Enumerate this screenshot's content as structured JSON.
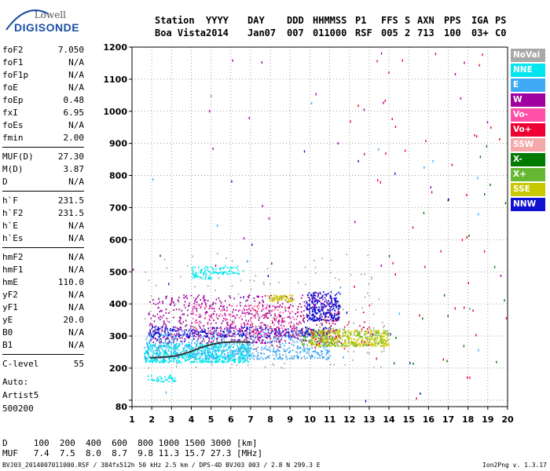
{
  "logo": {
    "line1": "Lowell",
    "line2": "DIGISONDE"
  },
  "header": {
    "labels": [
      "Station",
      "YYYY",
      "DAY",
      "DDD",
      "HHMMSS",
      "P1",
      "FFS",
      "S",
      "AXN",
      "PPS",
      "IGA",
      "PS"
    ],
    "values": [
      "Boa Vista",
      "2014",
      "Jan07",
      "007",
      "011000",
      "RSF",
      "005",
      "2",
      "713",
      "100",
      "03+",
      "C0"
    ]
  },
  "params_groups": [
    [
      {
        "name": "foF2",
        "value": "7.050"
      },
      {
        "name": "foF1",
        "value": "N/A"
      },
      {
        "name": "foF1p",
        "value": "N/A"
      },
      {
        "name": "foE",
        "value": "N/A"
      },
      {
        "name": "foEp",
        "value": "0.48"
      },
      {
        "name": "fxI",
        "value": "6.95"
      },
      {
        "name": "foEs",
        "value": "N/A"
      },
      {
        "name": "fmin",
        "value": "2.00"
      }
    ],
    [
      {
        "name": "MUF(D)",
        "value": "27.30"
      },
      {
        "name": "M(D)",
        "value": "3.87"
      },
      {
        "name": "D",
        "value": "N/A"
      }
    ],
    [
      {
        "name": "h`F",
        "value": "231.5"
      },
      {
        "name": "h`F2",
        "value": "231.5"
      },
      {
        "name": "h`E",
        "value": "N/A"
      },
      {
        "name": "h`Es",
        "value": "N/A"
      }
    ],
    [
      {
        "name": "hmF2",
        "value": "N/A"
      },
      {
        "name": "hmF1",
        "value": "N/A"
      },
      {
        "name": "hmE",
        "value": "110.0"
      },
      {
        "name": "yF2",
        "value": "N/A"
      },
      {
        "name": "yF1",
        "value": "N/A"
      },
      {
        "name": "yE",
        "value": "20.0"
      },
      {
        "name": "B0",
        "value": "N/A"
      },
      {
        "name": "B1",
        "value": "N/A"
      }
    ],
    [
      {
        "name": "C-level",
        "value": "55"
      }
    ]
  ],
  "auto": {
    "line1": "Auto:",
    "line2": "Artist5",
    "line3": "500200"
  },
  "footer": {
    "d_line": "D     100  200  400  600  800 1000 1500 3000 [km]",
    "muf_line": "MUF   7.4  7.5  8.0  8.7  9.8 11.3 15.7 27.3 [MHz]",
    "info": "BVJ03_2014007011000.RSF / 384fx512h 50 kHz 2.5 km / DPS-4D BVJ03 003 / 2.8 N 299.3 E",
    "version": "Ion2Png v. 1.3.17"
  },
  "legend": [
    {
      "label": "NoVal",
      "color": "#a9a9a9"
    },
    {
      "label": "NNE",
      "color": "#00e5ee"
    },
    {
      "label": "E",
      "color": "#3fa9f5"
    },
    {
      "label": "W",
      "color": "#a000a0"
    },
    {
      "label": "Vo-",
      "color": "#ff4fa7"
    },
    {
      "label": "Vo+",
      "color": "#ee0033"
    },
    {
      "label": "SSW",
      "color": "#f4a8a8"
    },
    {
      "label": "X-",
      "color": "#007a00"
    },
    {
      "label": "X+",
      "color": "#66b832"
    },
    {
      "label": "SSE",
      "color": "#c8c800"
    },
    {
      "label": "NNW",
      "color": "#1010d0"
    }
  ],
  "chart_data": {
    "type": "scatter",
    "xlim": [
      1,
      20
    ],
    "ylim": [
      80,
      1200
    ],
    "x_ticks": [
      1,
      2,
      3,
      4,
      5,
      6,
      7,
      8,
      9,
      10,
      11,
      12,
      13,
      14,
      15,
      16,
      17,
      18,
      19,
      20
    ],
    "y_ticks": [
      80,
      100,
      200,
      300,
      400,
      500,
      600,
      700,
      800,
      900,
      1000,
      1100,
      1200
    ],
    "y_tick_labels": [
      "80",
      "",
      "200",
      "300",
      "400",
      "500",
      "600",
      "700",
      "800",
      "900",
      "1000",
      "1100",
      "1200"
    ],
    "grid": "dotted",
    "trace": {
      "color": "#333333",
      "x": [
        1.9,
        2.3,
        2.8,
        3.2,
        3.6,
        4.0,
        4.4,
        4.8,
        5.2,
        5.6,
        6.0,
        6.4,
        6.8,
        7.0
      ],
      "y": [
        232,
        233,
        235,
        238,
        244,
        252,
        262,
        270,
        276,
        280,
        281,
        282,
        281,
        280
      ]
    },
    "clusters": [
      {
        "color": "#00e5ee",
        "x": [
          1.6,
          7.0
        ],
        "y": [
          220,
          280
        ],
        "n": 650
      },
      {
        "color": "#3fa9f5",
        "x": [
          1.6,
          11.0
        ],
        "y": [
          230,
          320
        ],
        "n": 700
      },
      {
        "color": "#a000a0",
        "x": [
          1.8,
          11.5
        ],
        "y": [
          280,
          430
        ],
        "n": 650
      },
      {
        "color": "#1010d0",
        "x": [
          9.8,
          11.5
        ],
        "y": [
          350,
          440
        ],
        "n": 250
      },
      {
        "color": "#1010d0",
        "x": [
          1.8,
          11.0
        ],
        "y": [
          300,
          330
        ],
        "n": 300
      },
      {
        "color": "#ff4fa7",
        "x": [
          4.0,
          9.5
        ],
        "y": [
          300,
          400
        ],
        "n": 220
      },
      {
        "color": "#c8c800",
        "x": [
          10.0,
          14.0
        ],
        "y": [
          270,
          320
        ],
        "n": 380
      },
      {
        "color": "#c8c800",
        "x": [
          7.8,
          9.2
        ],
        "y": [
          410,
          430
        ],
        "n": 60
      },
      {
        "color": "#66b832",
        "x": [
          9.5,
          14.0
        ],
        "y": [
          270,
          330
        ],
        "n": 130
      },
      {
        "color": "#00e5ee",
        "x": [
          4.0,
          5.0
        ],
        "y": [
          480,
          520
        ],
        "n": 60
      },
      {
        "color": "#00e5ee",
        "x": [
          5.0,
          6.6
        ],
        "y": [
          495,
          520
        ],
        "n": 50
      },
      {
        "color": "#00e5ee",
        "x": [
          1.6,
          3.2
        ],
        "y": [
          160,
          180
        ],
        "n": 40
      },
      {
        "color": "#a9a9a9",
        "x": [
          1.6,
          14.0
        ],
        "y": [
          200,
          560
        ],
        "n": 200
      },
      {
        "color": "#ee0033",
        "x": [
          7.0,
          13.0
        ],
        "y": [
          260,
          400
        ],
        "n": 80
      }
    ],
    "sparse": [
      {
        "color": "#ee0033",
        "x": [
          12.0,
          20.0
        ],
        "y": [
          100,
          1200
        ],
        "n": 45
      },
      {
        "color": "#a000a0",
        "x": [
          1.0,
          20.0
        ],
        "y": [
          300,
          1200
        ],
        "n": 30
      },
      {
        "color": "#007a00",
        "x": [
          12.0,
          20.0
        ],
        "y": [
          200,
          900
        ],
        "n": 20
      },
      {
        "color": "#3fa9f5",
        "x": [
          1.0,
          20.0
        ],
        "y": [
          100,
          1200
        ],
        "n": 20
      },
      {
        "color": "#1010d0",
        "x": [
          2.0,
          17.0
        ],
        "y": [
          100,
          900
        ],
        "n": 15
      }
    ]
  }
}
